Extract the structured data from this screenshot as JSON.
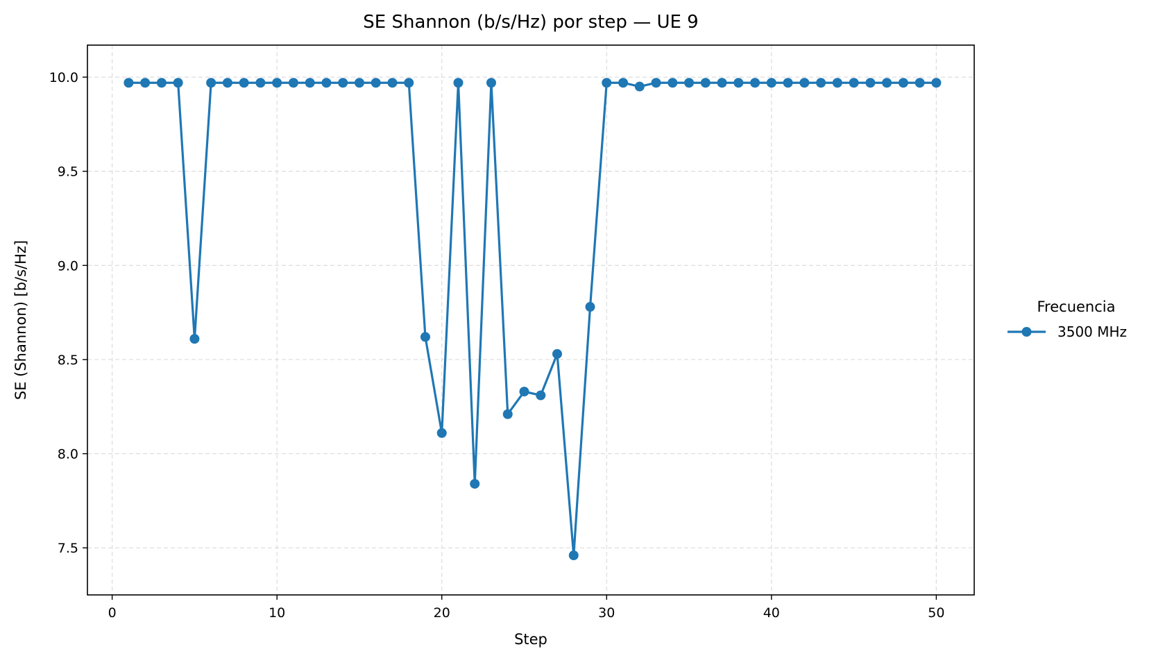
{
  "chart_data": {
    "type": "line",
    "title": "SE Shannon (b/s/Hz) por step — UE 9",
    "xlabel": "Step",
    "ylabel": "SE (Shannon) [b/s/Hz]",
    "xlim": [
      -1.5,
      52.3
    ],
    "ylim": [
      7.25,
      10.17
    ],
    "xticks": [
      0,
      10,
      20,
      30,
      40,
      50
    ],
    "xtick_labels": [
      "0",
      "10",
      "20",
      "30",
      "40",
      "50"
    ],
    "yticks": [
      7.5,
      8.0,
      8.5,
      9.0,
      9.5,
      10.0
    ],
    "ytick_labels": [
      "7.5",
      "8.0",
      "8.5",
      "9.0",
      "9.5",
      "10.0"
    ],
    "grid": true,
    "legend": {
      "title": "Frecuencia",
      "placement": "outside-right"
    },
    "series": [
      {
        "name": "3500 MHz",
        "color": "#1f77b4",
        "marker": "circle",
        "x": [
          1,
          2,
          3,
          4,
          5,
          6,
          7,
          8,
          9,
          10,
          11,
          12,
          13,
          14,
          15,
          16,
          17,
          18,
          19,
          20,
          21,
          22,
          23,
          24,
          25,
          26,
          27,
          28,
          29,
          30,
          31,
          32,
          33,
          34,
          35,
          36,
          37,
          38,
          39,
          40,
          41,
          42,
          43,
          44,
          45,
          46,
          47,
          48,
          49,
          50
        ],
        "y": [
          9.97,
          9.97,
          9.97,
          9.97,
          8.61,
          9.97,
          9.97,
          9.97,
          9.97,
          9.97,
          9.97,
          9.97,
          9.97,
          9.97,
          9.97,
          9.97,
          9.97,
          9.97,
          8.62,
          8.11,
          9.97,
          7.84,
          9.97,
          8.21,
          8.33,
          8.31,
          8.53,
          7.46,
          8.78,
          9.97,
          9.97,
          9.95,
          9.97,
          9.97,
          9.97,
          9.97,
          9.97,
          9.97,
          9.97,
          9.97,
          9.97,
          9.97,
          9.97,
          9.97,
          9.97,
          9.97,
          9.97,
          9.97,
          9.97,
          9.97
        ]
      }
    ]
  }
}
